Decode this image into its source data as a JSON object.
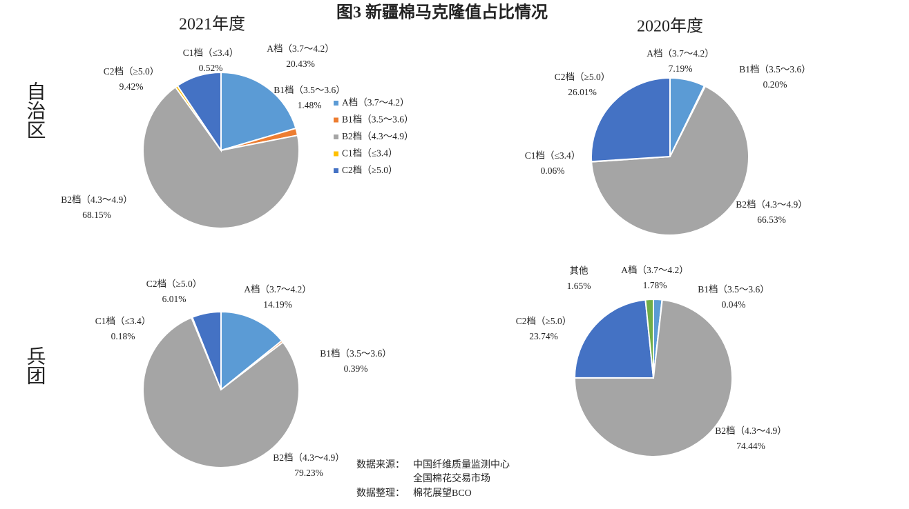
{
  "title": "图3  新疆棉马克隆值占比情况",
  "row_labels": [
    "自治区",
    "兵团"
  ],
  "notes": [
    {
      "label": "数据来源：",
      "lines": [
        "中国纤维质量监测中心",
        "全国棉花交易市场"
      ]
    },
    {
      "label": "数据整理：",
      "lines": [
        "棉花展望BCO"
      ]
    }
  ],
  "chart_data": [
    {
      "type": "pie",
      "title": "2021年度",
      "categories": [
        "A档（3.7～4.2）",
        "B1档（3.5～3.6）",
        "B2档（4.3～4.9）",
        "C1档（≤3.4）",
        "C2档（≥5.0）"
      ],
      "values": [
        20.43,
        1.48,
        68.15,
        0.52,
        9.42
      ],
      "value_labels": [
        "20.43%",
        "1.48%",
        "68.15%",
        "0.52%",
        "9.42%"
      ],
      "colors": [
        "#5b9bd5",
        "#ed7d31",
        "#a5a5a5",
        "#ffc000",
        "#4472c4"
      ],
      "legend": "right"
    },
    {
      "type": "pie",
      "title": "2020年度",
      "categories": [
        "A档（3.7～4.2）",
        "B1档（3.5～3.6）",
        "B2档（4.3～4.9）",
        "C1档（≤3.4）",
        "C2档（≥5.0）"
      ],
      "values": [
        7.19,
        0.2,
        66.53,
        0.06,
        26.01
      ],
      "value_labels": [
        "7.19%",
        "0.20%",
        "66.53%",
        "0.06%",
        "26.01%"
      ],
      "colors": [
        "#5b9bd5",
        "#ed7d31",
        "#a5a5a5",
        "#ffc000",
        "#4472c4"
      ]
    },
    {
      "type": "pie",
      "categories": [
        "A档（3.7～4.2）",
        "B1档（3.5～3.6）",
        "B2档（4.3～4.9）",
        "C1档（≤3.4）",
        "C2档（≥5.0）"
      ],
      "values": [
        14.19,
        0.39,
        79.23,
        0.18,
        6.01
      ],
      "value_labels": [
        "14.19%",
        "0.39%",
        "79.23%",
        "0.18%",
        "6.01%"
      ],
      "colors": [
        "#5b9bd5",
        "#ed7d31",
        "#a5a5a5",
        "#ffc000",
        "#4472c4"
      ]
    },
    {
      "type": "pie",
      "categories": [
        "A档（3.7～4.2）",
        "B1档（3.5～3.6）",
        "B2档（4.3～4.9）",
        "C2档（≥5.0）",
        "其他"
      ],
      "values": [
        1.78,
        0.04,
        74.44,
        23.74,
        1.65
      ],
      "value_labels": [
        "1.78%",
        "0.04%",
        "74.44%",
        "23.74%",
        "1.65%"
      ],
      "colors": [
        "#5b9bd5",
        "#ed7d31",
        "#a5a5a5",
        "#4472c4",
        "#70ad47"
      ]
    }
  ]
}
